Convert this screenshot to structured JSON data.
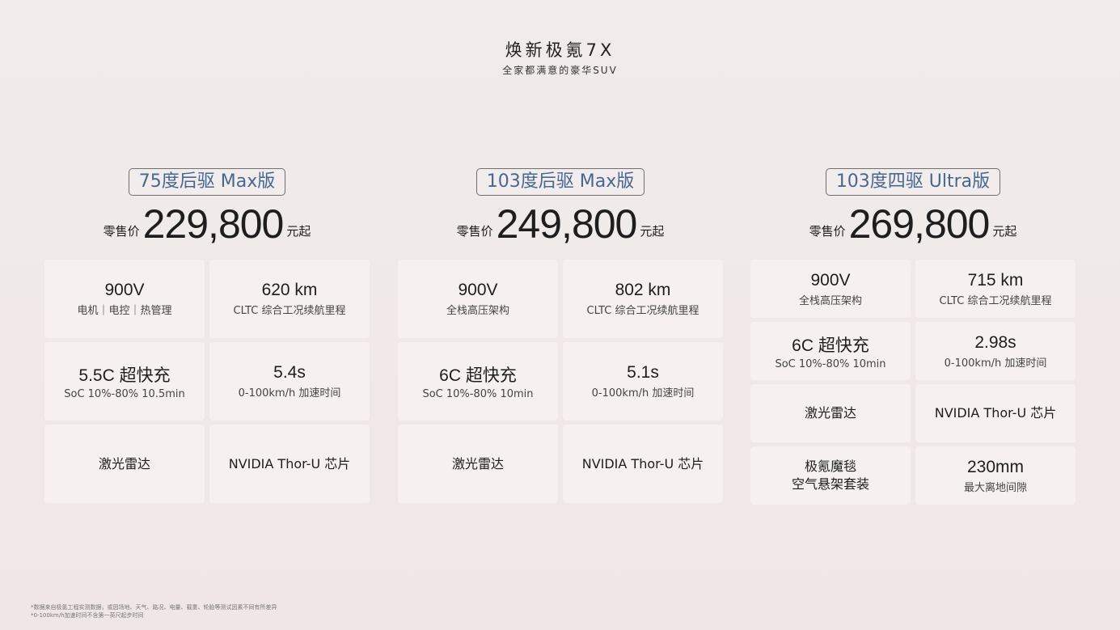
{
  "header": {
    "title": "焕新极氪7X",
    "subtitle": "全家都满意的豪华SUV"
  },
  "variants": [
    {
      "name": "75度后驱 Max版",
      "price_prefix": "零售价",
      "price": "229,800",
      "price_suffix": "元起",
      "specs": [
        {
          "value": "900V",
          "label": "电机｜电控｜热管理"
        },
        {
          "value": "620 km",
          "label": "CLTC 综合工况续航里程"
        },
        {
          "value": "5.5C 超快充",
          "label": "SoC 10%-80% 10.5min"
        },
        {
          "value": "5.4s",
          "label": "0-100km/h 加速时间"
        },
        {
          "value": "",
          "label": "",
          "main": "激光雷达"
        },
        {
          "value": "",
          "label": "",
          "main": "NVIDIA Thor-U 芯片"
        }
      ]
    },
    {
      "name": "103度后驱 Max版",
      "price_prefix": "零售价",
      "price": "249,800",
      "price_suffix": "元起",
      "specs": [
        {
          "value": "900V",
          "label": "全栈高压架构"
        },
        {
          "value": "802 km",
          "label": "CLTC 综合工况续航里程"
        },
        {
          "value": "6C 超快充",
          "label": "SoC 10%-80% 10min"
        },
        {
          "value": "5.1s",
          "label": "0-100km/h 加速时间"
        },
        {
          "value": "",
          "label": "",
          "main": "激光雷达"
        },
        {
          "value": "",
          "label": "",
          "main": "NVIDIA Thor-U 芯片"
        }
      ]
    },
    {
      "name": "103度四驱 Ultra版",
      "price_prefix": "零售价",
      "price": "269,800",
      "price_suffix": "元起",
      "specs": [
        {
          "value": "900V",
          "label": "全栈高压架构"
        },
        {
          "value": "715 km",
          "label": "CLTC 综合工况续航里程"
        },
        {
          "value": "6C 超快充",
          "label": "SoC 10%-80% 10min"
        },
        {
          "value": "2.98s",
          "label": "0-100km/h 加速时间"
        },
        {
          "value": "",
          "label": "",
          "main": "激光雷达"
        },
        {
          "value": "",
          "label": "",
          "main": "NVIDIA Thor-U 芯片"
        },
        {
          "value": "",
          "label": "",
          "main": "极氪魔毯\n空气悬架套装"
        },
        {
          "value": "230mm",
          "label": "最大离地间隙"
        }
      ]
    }
  ],
  "footnotes": [
    "*数据来自极氪工程实测数据，或因场地、天气、路况、电量、载重、轮胎等测试因素不同有所差异",
    "*0-100km/h加速时间不含第一英尺起步时间"
  ],
  "colors": {
    "badge_text": "#46678f",
    "card_bg": "#f6f0f0"
  }
}
